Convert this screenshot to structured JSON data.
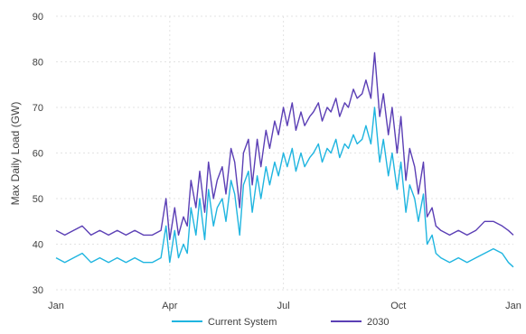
{
  "chart_data": {
    "type": "line",
    "title": "",
    "xlabel": "",
    "ylabel": "Max Daily Load (GW)",
    "ylim": [
      30,
      90
    ],
    "yticks": [
      30,
      40,
      50,
      60,
      70,
      80,
      90
    ],
    "xticks": [
      {
        "label": "Jan",
        "day": 0
      },
      {
        "label": "Apr",
        "day": 91
      },
      {
        "label": "Jul",
        "day": 182
      },
      {
        "label": "Oct",
        "day": 274
      },
      {
        "label": "Jan",
        "day": 366
      }
    ],
    "grid": true,
    "legend": "bottom",
    "x_days": [
      0,
      7,
      14,
      21,
      28,
      35,
      42,
      49,
      56,
      63,
      70,
      77,
      84,
      88,
      91,
      95,
      98,
      102,
      105,
      108,
      112,
      115,
      119,
      122,
      126,
      129,
      133,
      136,
      140,
      143,
      147,
      150,
      154,
      157,
      161,
      164,
      168,
      171,
      175,
      178,
      182,
      185,
      189,
      192,
      196,
      199,
      203,
      206,
      210,
      213,
      217,
      220,
      224,
      227,
      231,
      234,
      238,
      241,
      245,
      248,
      252,
      255,
      259,
      262,
      266,
      269,
      273,
      276,
      280,
      283,
      287,
      290,
      294,
      297,
      301,
      304,
      308,
      315,
      322,
      329,
      336,
      343,
      350,
      357,
      362,
      366
    ],
    "series": [
      {
        "name": "Current System",
        "color": "#1fb5e0",
        "values": [
          37,
          36,
          37,
          38,
          36,
          37,
          36,
          37,
          36,
          37,
          36,
          36,
          37,
          44,
          36,
          43,
          37,
          40,
          38,
          48,
          42,
          50,
          41,
          52,
          44,
          48,
          50,
          45,
          54,
          51,
          42,
          53,
          56,
          47,
          55,
          50,
          57,
          53,
          58,
          55,
          60,
          57,
          61,
          56,
          60,
          57,
          59,
          60,
          62,
          58,
          61,
          60,
          63,
          59,
          62,
          61,
          64,
          62,
          63,
          66,
          62,
          70,
          58,
          63,
          55,
          60,
          52,
          58,
          47,
          53,
          50,
          45,
          51,
          40,
          42,
          38,
          37,
          36,
          37,
          36,
          37,
          38,
          39,
          38,
          36,
          35
        ]
      },
      {
        "name": "2030",
        "color": "#5b3fb5",
        "values": [
          43,
          42,
          43,
          44,
          42,
          43,
          42,
          43,
          42,
          43,
          42,
          42,
          43,
          50,
          41,
          48,
          42,
          46,
          44,
          54,
          48,
          56,
          47,
          58,
          50,
          54,
          57,
          51,
          61,
          58,
          48,
          60,
          63,
          53,
          63,
          57,
          65,
          61,
          67,
          64,
          70,
          66,
          71,
          65,
          69,
          66,
          68,
          69,
          71,
          67,
          70,
          69,
          72,
          68,
          71,
          70,
          74,
          72,
          73,
          76,
          72,
          82,
          68,
          73,
          64,
          70,
          60,
          68,
          54,
          61,
          57,
          51,
          58,
          46,
          48,
          44,
          43,
          42,
          43,
          42,
          43,
          45,
          45,
          44,
          43,
          42
        ]
      }
    ]
  }
}
